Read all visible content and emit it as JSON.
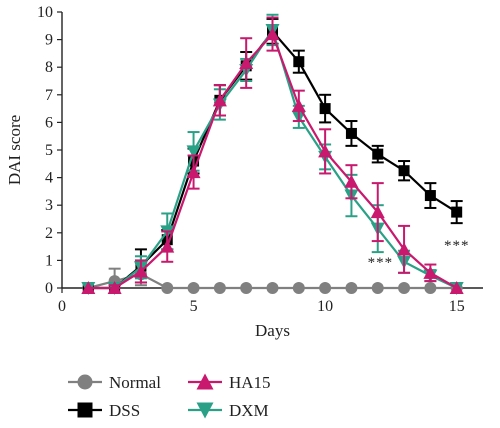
{
  "chart_data": {
    "type": "line",
    "xlabel": "Days",
    "ylabel": "DAI score",
    "xlim": [
      0,
      16
    ],
    "ylim": [
      0,
      10
    ],
    "x_ticks": [
      0,
      5,
      10,
      15
    ],
    "y_ticks": [
      0,
      1,
      2,
      3,
      4,
      5,
      6,
      7,
      8,
      9,
      10
    ],
    "grid": false,
    "legend_position": "bottom",
    "series": [
      {
        "name": "Normal",
        "marker": "circle",
        "color": "#808080",
        "x": [
          1,
          2,
          3,
          4,
          5,
          6,
          7,
          8,
          9,
          10,
          11,
          12,
          13,
          14,
          15
        ],
        "y": [
          0,
          0.25,
          0.5,
          0,
          0,
          0,
          0,
          0,
          0,
          0,
          0,
          0,
          0,
          0,
          0
        ],
        "err": [
          0,
          0.45,
          0.4,
          0,
          0,
          0,
          0,
          0,
          0,
          0,
          0,
          0,
          0,
          0,
          0
        ]
      },
      {
        "name": "DSS",
        "marker": "square",
        "color": "#000000",
        "x": [
          1,
          2,
          3,
          4,
          5,
          6,
          7,
          8,
          9,
          10,
          11,
          12,
          13,
          14,
          15
        ],
        "y": [
          0,
          0,
          0.8,
          1.75,
          4.6,
          6.8,
          8.05,
          9.3,
          8.2,
          6.5,
          5.6,
          4.85,
          4.25,
          3.35,
          2.75
        ],
        "err": [
          0,
          0.1,
          0.6,
          0.35,
          0.45,
          0.55,
          0.5,
          0.45,
          0.4,
          0.5,
          0.45,
          0.3,
          0.35,
          0.45,
          0.4
        ]
      },
      {
        "name": "HA15",
        "marker": "triangle-up",
        "color": "#c8196e",
        "x": [
          1,
          2,
          3,
          4,
          5,
          6,
          7,
          8,
          9,
          10,
          11,
          12,
          13,
          14,
          15
        ],
        "y": [
          0,
          0,
          0.6,
          1.5,
          4.2,
          6.8,
          8.15,
          9.2,
          6.6,
          4.95,
          3.85,
          2.75,
          1.4,
          0.55,
          0
        ],
        "err": [
          0,
          0.1,
          0.4,
          0.55,
          0.6,
          0.55,
          0.9,
          0.6,
          0.55,
          0.8,
          0.6,
          1.05,
          0.85,
          0.3,
          0
        ]
      },
      {
        "name": "DXM",
        "marker": "triangle-down",
        "color": "#2aa187",
        "x": [
          1,
          2,
          3,
          4,
          5,
          6,
          7,
          8,
          9,
          10,
          11,
          12,
          13,
          14,
          15
        ],
        "y": [
          0,
          0,
          0.75,
          2.05,
          4.95,
          6.65,
          7.9,
          9.35,
          6.2,
          4.75,
          3.35,
          2.15,
          0.95,
          0.45,
          0
        ],
        "err": [
          0,
          0.1,
          0.4,
          0.65,
          0.7,
          0.55,
          0.4,
          0.55,
          0.4,
          0.45,
          0.75,
          0.85,
          0.4,
          0.2,
          0
        ]
      }
    ],
    "annotations": [
      {
        "text": "***",
        "x": 12.1,
        "y": 0.95
      },
      {
        "text": "***",
        "x": 15.0,
        "y": 1.55
      },
      {
        "text": "***",
        "x": 17.3,
        "y": -0.45
      }
    ]
  }
}
